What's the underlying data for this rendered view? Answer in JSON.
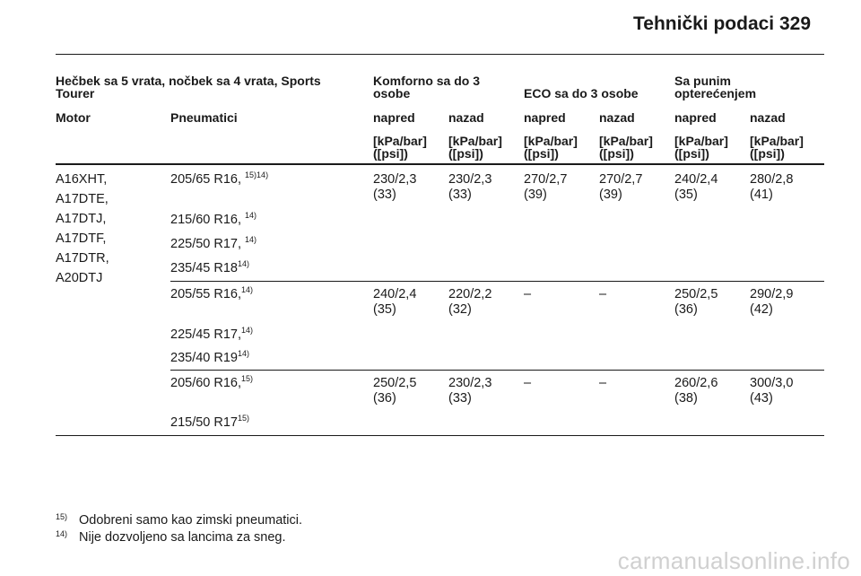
{
  "header": {
    "title": "Tehnički podaci",
    "page_number": "329"
  },
  "table": {
    "group_title": "Hečbek sa 5 vrata, nočbek sa 4 vrata, Sports Tourer",
    "load_groups": [
      "Komforno sa do 3 osobe",
      "ECO sa do 3 osobe",
      "Sa punim opterećenjem"
    ],
    "col_motor": "Motor",
    "col_tyres": "Pneumatici",
    "col_front": "napred",
    "col_rear": "nazad",
    "unit_line1": "[kPa/bar]",
    "unit_line2": "([psi])",
    "motors": [
      "A16XHT,",
      "A17DTE,",
      "A17DTJ,",
      "A17DTF,",
      "A17DTR,",
      "A20DTJ"
    ],
    "groups": [
      {
        "tyres": [
          {
            "size": "205/65 R16, ",
            "note": "15)14)"
          },
          {
            "size": "215/60 R16, ",
            "note": "14)"
          },
          {
            "size": "225/50 R17, ",
            "note": "14)"
          },
          {
            "size": "235/45 R18",
            "note": "14)"
          }
        ],
        "values": [
          {
            "a": "230/2,3",
            "b": "(33)"
          },
          {
            "a": "230/2,3",
            "b": "(33)"
          },
          {
            "a": "270/2,7",
            "b": "(39)"
          },
          {
            "a": "270/2,7",
            "b": "(39)"
          },
          {
            "a": "240/2,4",
            "b": "(35)"
          },
          {
            "a": "280/2,8",
            "b": "(41)"
          }
        ]
      },
      {
        "tyres": [
          {
            "size": "205/55 R16,",
            "note": "14)"
          },
          {
            "size": "225/45 R17,",
            "note": "14)"
          },
          {
            "size": "235/40 R19",
            "note": "14)"
          }
        ],
        "values": [
          {
            "a": "240/2,4",
            "b": "(35)"
          },
          {
            "a": "220/2,2",
            "b": "(32)"
          },
          {
            "a": "–",
            "b": ""
          },
          {
            "a": "–",
            "b": ""
          },
          {
            "a": "250/2,5",
            "b": "(36)"
          },
          {
            "a": "290/2,9",
            "b": "(42)"
          }
        ]
      },
      {
        "tyres": [
          {
            "size": "205/60 R16,",
            "note": "15)"
          },
          {
            "size": "215/50 R17",
            "note": "15)"
          }
        ],
        "values": [
          {
            "a": "250/2,5",
            "b": "(36)"
          },
          {
            "a": "230/2,3",
            "b": "(33)"
          },
          {
            "a": "–",
            "b": ""
          },
          {
            "a": "–",
            "b": ""
          },
          {
            "a": "260/2,6",
            "b": "(38)"
          },
          {
            "a": "300/3,0",
            "b": "(43)"
          }
        ]
      }
    ]
  },
  "footnotes": [
    {
      "num": "15)",
      "text": "Odobreni samo kao zimski pneumatici."
    },
    {
      "num": "14)",
      "text": "Nije dozvoljeno sa lancima za sneg."
    }
  ],
  "watermark": "carmanualsonline.info"
}
